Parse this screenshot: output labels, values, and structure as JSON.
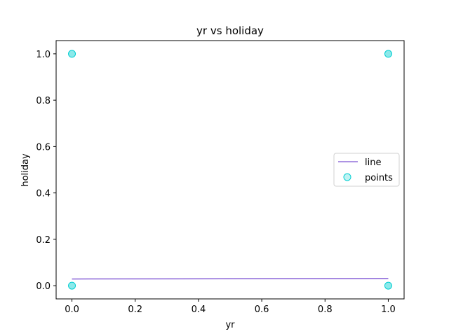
{
  "chart_data": {
    "type": "scatter",
    "title": "yr vs holiday",
    "xlabel": "yr",
    "ylabel": "holiday",
    "xlim": [
      -0.05,
      1.05
    ],
    "ylim": [
      -0.057,
      1.057
    ],
    "xticks": [
      "0.0",
      "0.2",
      "0.4",
      "0.6",
      "0.8",
      "1.0"
    ],
    "yticks": [
      "0.0",
      "0.2",
      "0.4",
      "0.6",
      "0.8",
      "1.0"
    ],
    "grid": false,
    "legend_position": "center-right",
    "series": [
      {
        "name": "line",
        "kind": "line",
        "color": "#9370DB",
        "x": [
          0,
          1
        ],
        "y": [
          0.029,
          0.031
        ]
      },
      {
        "name": "points",
        "kind": "scatter",
        "color": "#00CED1",
        "x": [
          0,
          0,
          1,
          1
        ],
        "y": [
          0,
          1,
          0,
          1
        ]
      }
    ]
  }
}
